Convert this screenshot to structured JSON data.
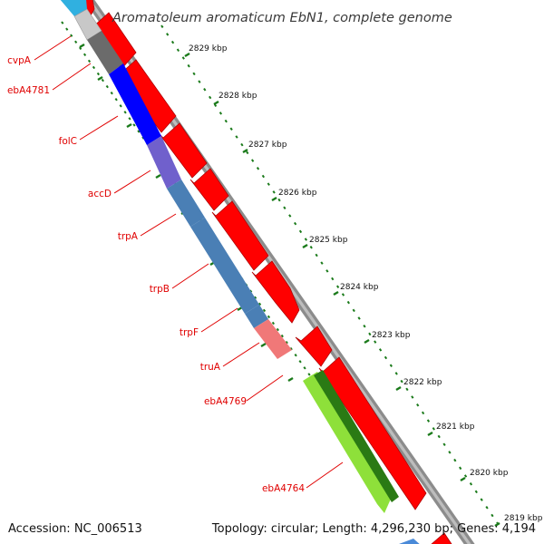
{
  "title": "Aromatoleum aromaticum EbN1, complete genome",
  "footer": {
    "accession": "Accession: NC_006513",
    "topology": "Topology: circular; Length: 4,296,230 bp; Genes: 4,194"
  },
  "colors": {
    "background": "#ffffff",
    "backbone": "#8c8c8c",
    "forward_cds": "#ff0000",
    "tick": "#1a7a1a",
    "gene_label": "#e00000"
  },
  "ruler_labels": [
    "2829 kbp",
    "2828 kbp",
    "2827 kbp",
    "2826 kbp",
    "2825 kbp",
    "2824 kbp",
    "2823 kbp",
    "2822 kbp",
    "2821 kbp",
    "2820 kbp",
    "2819 kbp"
  ],
  "reverse_genes": [
    {
      "name": "cvpA",
      "color": "#c8c8c8"
    },
    {
      "name": "ebA4781",
      "color": "#6b6b6b"
    },
    {
      "name": "folC",
      "color": "#0000ff"
    },
    {
      "name": "accD",
      "color": "#7060cc"
    },
    {
      "name": "trpA",
      "color": "#4a7fb5"
    },
    {
      "name": "trpB",
      "color": "#4a7fb5"
    },
    {
      "name": "trpF",
      "color": "#4a7fb5"
    },
    {
      "name": "truA",
      "color": "#f07878"
    },
    {
      "name": "ebA4769",
      "color": "#ffffff"
    },
    {
      "name": "ebA4764",
      "color": "#8ee03a"
    }
  ]
}
